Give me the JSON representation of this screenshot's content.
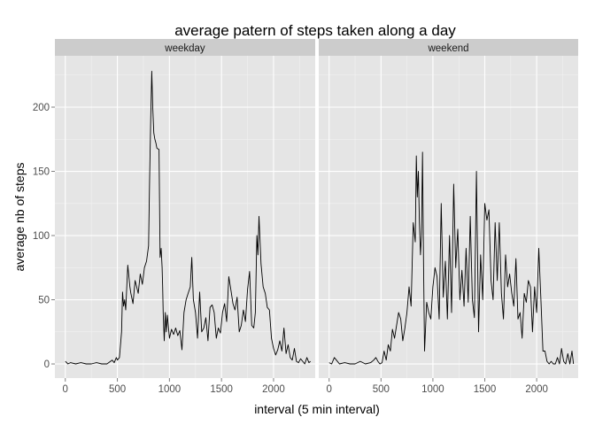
{
  "chart_data": {
    "type": "line",
    "title": "average patern of steps taken along a day",
    "xlabel": "interval (5 min interval)",
    "ylabel": "average nb of steps",
    "xlim": [
      -100,
      2400
    ],
    "ylim": [
      -11,
      240
    ],
    "x_ticks": [
      0,
      500,
      1000,
      1500,
      2000
    ],
    "x_tick_labels": [
      "0",
      "500",
      "1000",
      "1500",
      "2000"
    ],
    "y_ticks": [
      0,
      50,
      100,
      150,
      200
    ],
    "y_tick_labels": [
      "0",
      "50",
      "100",
      "150",
      "200"
    ],
    "grid": true,
    "legend": "none",
    "colors": {
      "panel": "#e5e5e5",
      "grid_major": "#ffffff",
      "grid_minor": "#f2f2f2",
      "strip": "#cccccc",
      "line": "#000000"
    },
    "panels": [
      {
        "strip": "weekday",
        "x": [
          0,
          25,
          50,
          100,
          150,
          200,
          250,
          300,
          350,
          400,
          450,
          470,
          490,
          500,
          520,
          540,
          550,
          560,
          570,
          580,
          600,
          620,
          630,
          650,
          670,
          700,
          720,
          740,
          760,
          780,
          800,
          810,
          820,
          830,
          840,
          850,
          860,
          870,
          880,
          900,
          910,
          920,
          930,
          935,
          940,
          950,
          960,
          970,
          980,
          1000,
          1020,
          1040,
          1060,
          1080,
          1100,
          1120,
          1140,
          1160,
          1180,
          1200,
          1215,
          1230,
          1250,
          1270,
          1290,
          1310,
          1330,
          1350,
          1370,
          1390,
          1410,
          1430,
          1450,
          1470,
          1490,
          1510,
          1530,
          1550,
          1570,
          1590,
          1610,
          1630,
          1650,
          1670,
          1690,
          1710,
          1730,
          1750,
          1770,
          1790,
          1810,
          1825,
          1840,
          1850,
          1860,
          1880,
          1900,
          1920,
          1940,
          1960,
          1980,
          2000,
          2020,
          2040,
          2060,
          2080,
          2100,
          2120,
          2140,
          2160,
          2180,
          2200,
          2220,
          2240,
          2260,
          2280,
          2300,
          2320,
          2340,
          2355
        ],
        "y": [
          2,
          0,
          1,
          0,
          1,
          0,
          0,
          1,
          0,
          0,
          3,
          1,
          5,
          3,
          5,
          25,
          56,
          45,
          50,
          42,
          77,
          60,
          55,
          47,
          65,
          55,
          70,
          62,
          75,
          80,
          92,
          145,
          190,
          228,
          200,
          180,
          175,
          172,
          168,
          167,
          83,
          90,
          75,
          60,
          40,
          18,
          40,
          25,
          38,
          20,
          27,
          23,
          28,
          22,
          26,
          11,
          40,
          50,
          55,
          60,
          83,
          50,
          40,
          20,
          56,
          25,
          28,
          36,
          18,
          44,
          46,
          40,
          20,
          28,
          24,
          40,
          47,
          33,
          68,
          58,
          47,
          42,
          52,
          25,
          30,
          42,
          33,
          58,
          72,
          30,
          28,
          40,
          100,
          85,
          115,
          78,
          60,
          55,
          44,
          42,
          20,
          12,
          7,
          11,
          18,
          10,
          28,
          8,
          15,
          5,
          3,
          12,
          2,
          1,
          4,
          2,
          0,
          5,
          1,
          2
        ],
        "x_labels_shown": [
          "0",
          "500",
          "1000",
          "1500",
          "2000"
        ]
      },
      {
        "strip": "weekend",
        "x": [
          0,
          25,
          50,
          100,
          150,
          200,
          250,
          300,
          350,
          400,
          430,
          450,
          470,
          490,
          510,
          530,
          550,
          570,
          590,
          610,
          630,
          650,
          670,
          690,
          710,
          730,
          750,
          770,
          790,
          810,
          830,
          840,
          850,
          860,
          870,
          880,
          890,
          900,
          910,
          920,
          940,
          960,
          980,
          1000,
          1020,
          1040,
          1060,
          1080,
          1100,
          1120,
          1140,
          1160,
          1180,
          1200,
          1220,
          1240,
          1260,
          1280,
          1300,
          1320,
          1340,
          1360,
          1380,
          1400,
          1420,
          1440,
          1460,
          1480,
          1500,
          1520,
          1540,
          1560,
          1580,
          1600,
          1620,
          1640,
          1660,
          1680,
          1700,
          1720,
          1740,
          1760,
          1780,
          1800,
          1820,
          1840,
          1860,
          1880,
          1900,
          1920,
          1940,
          1960,
          1980,
          2000,
          2020,
          2040,
          2060,
          2080,
          2100,
          2120,
          2140,
          2160,
          2180,
          2200,
          2220,
          2240,
          2260,
          2280,
          2300,
          2320,
          2340,
          2355
        ],
        "y": [
          1,
          0,
          5,
          0,
          1,
          0,
          0,
          2,
          0,
          1,
          3,
          5,
          2,
          0,
          1,
          10,
          3,
          15,
          10,
          27,
          20,
          30,
          40,
          35,
          18,
          28,
          40,
          60,
          45,
          110,
          95,
          162,
          130,
          150,
          110,
          85,
          100,
          165,
          75,
          10,
          48,
          40,
          35,
          60,
          75,
          68,
          35,
          125,
          52,
          80,
          35,
          100,
          40,
          140,
          75,
          105,
          50,
          73,
          45,
          90,
          48,
          115,
          50,
          36,
          150,
          25,
          85,
          50,
          125,
          112,
          120,
          65,
          50,
          110,
          65,
          110,
          55,
          35,
          85,
          60,
          70,
          55,
          45,
          82,
          35,
          40,
          20,
          55,
          48,
          65,
          60,
          25,
          60,
          40,
          90,
          52,
          10,
          10,
          2,
          0,
          2,
          0,
          0,
          5,
          0,
          12,
          2,
          0,
          8,
          0,
          10,
          0
        ],
        "x_labels_shown": [
          "0",
          "500",
          "1000",
          "1500",
          "2000"
        ]
      }
    ]
  }
}
